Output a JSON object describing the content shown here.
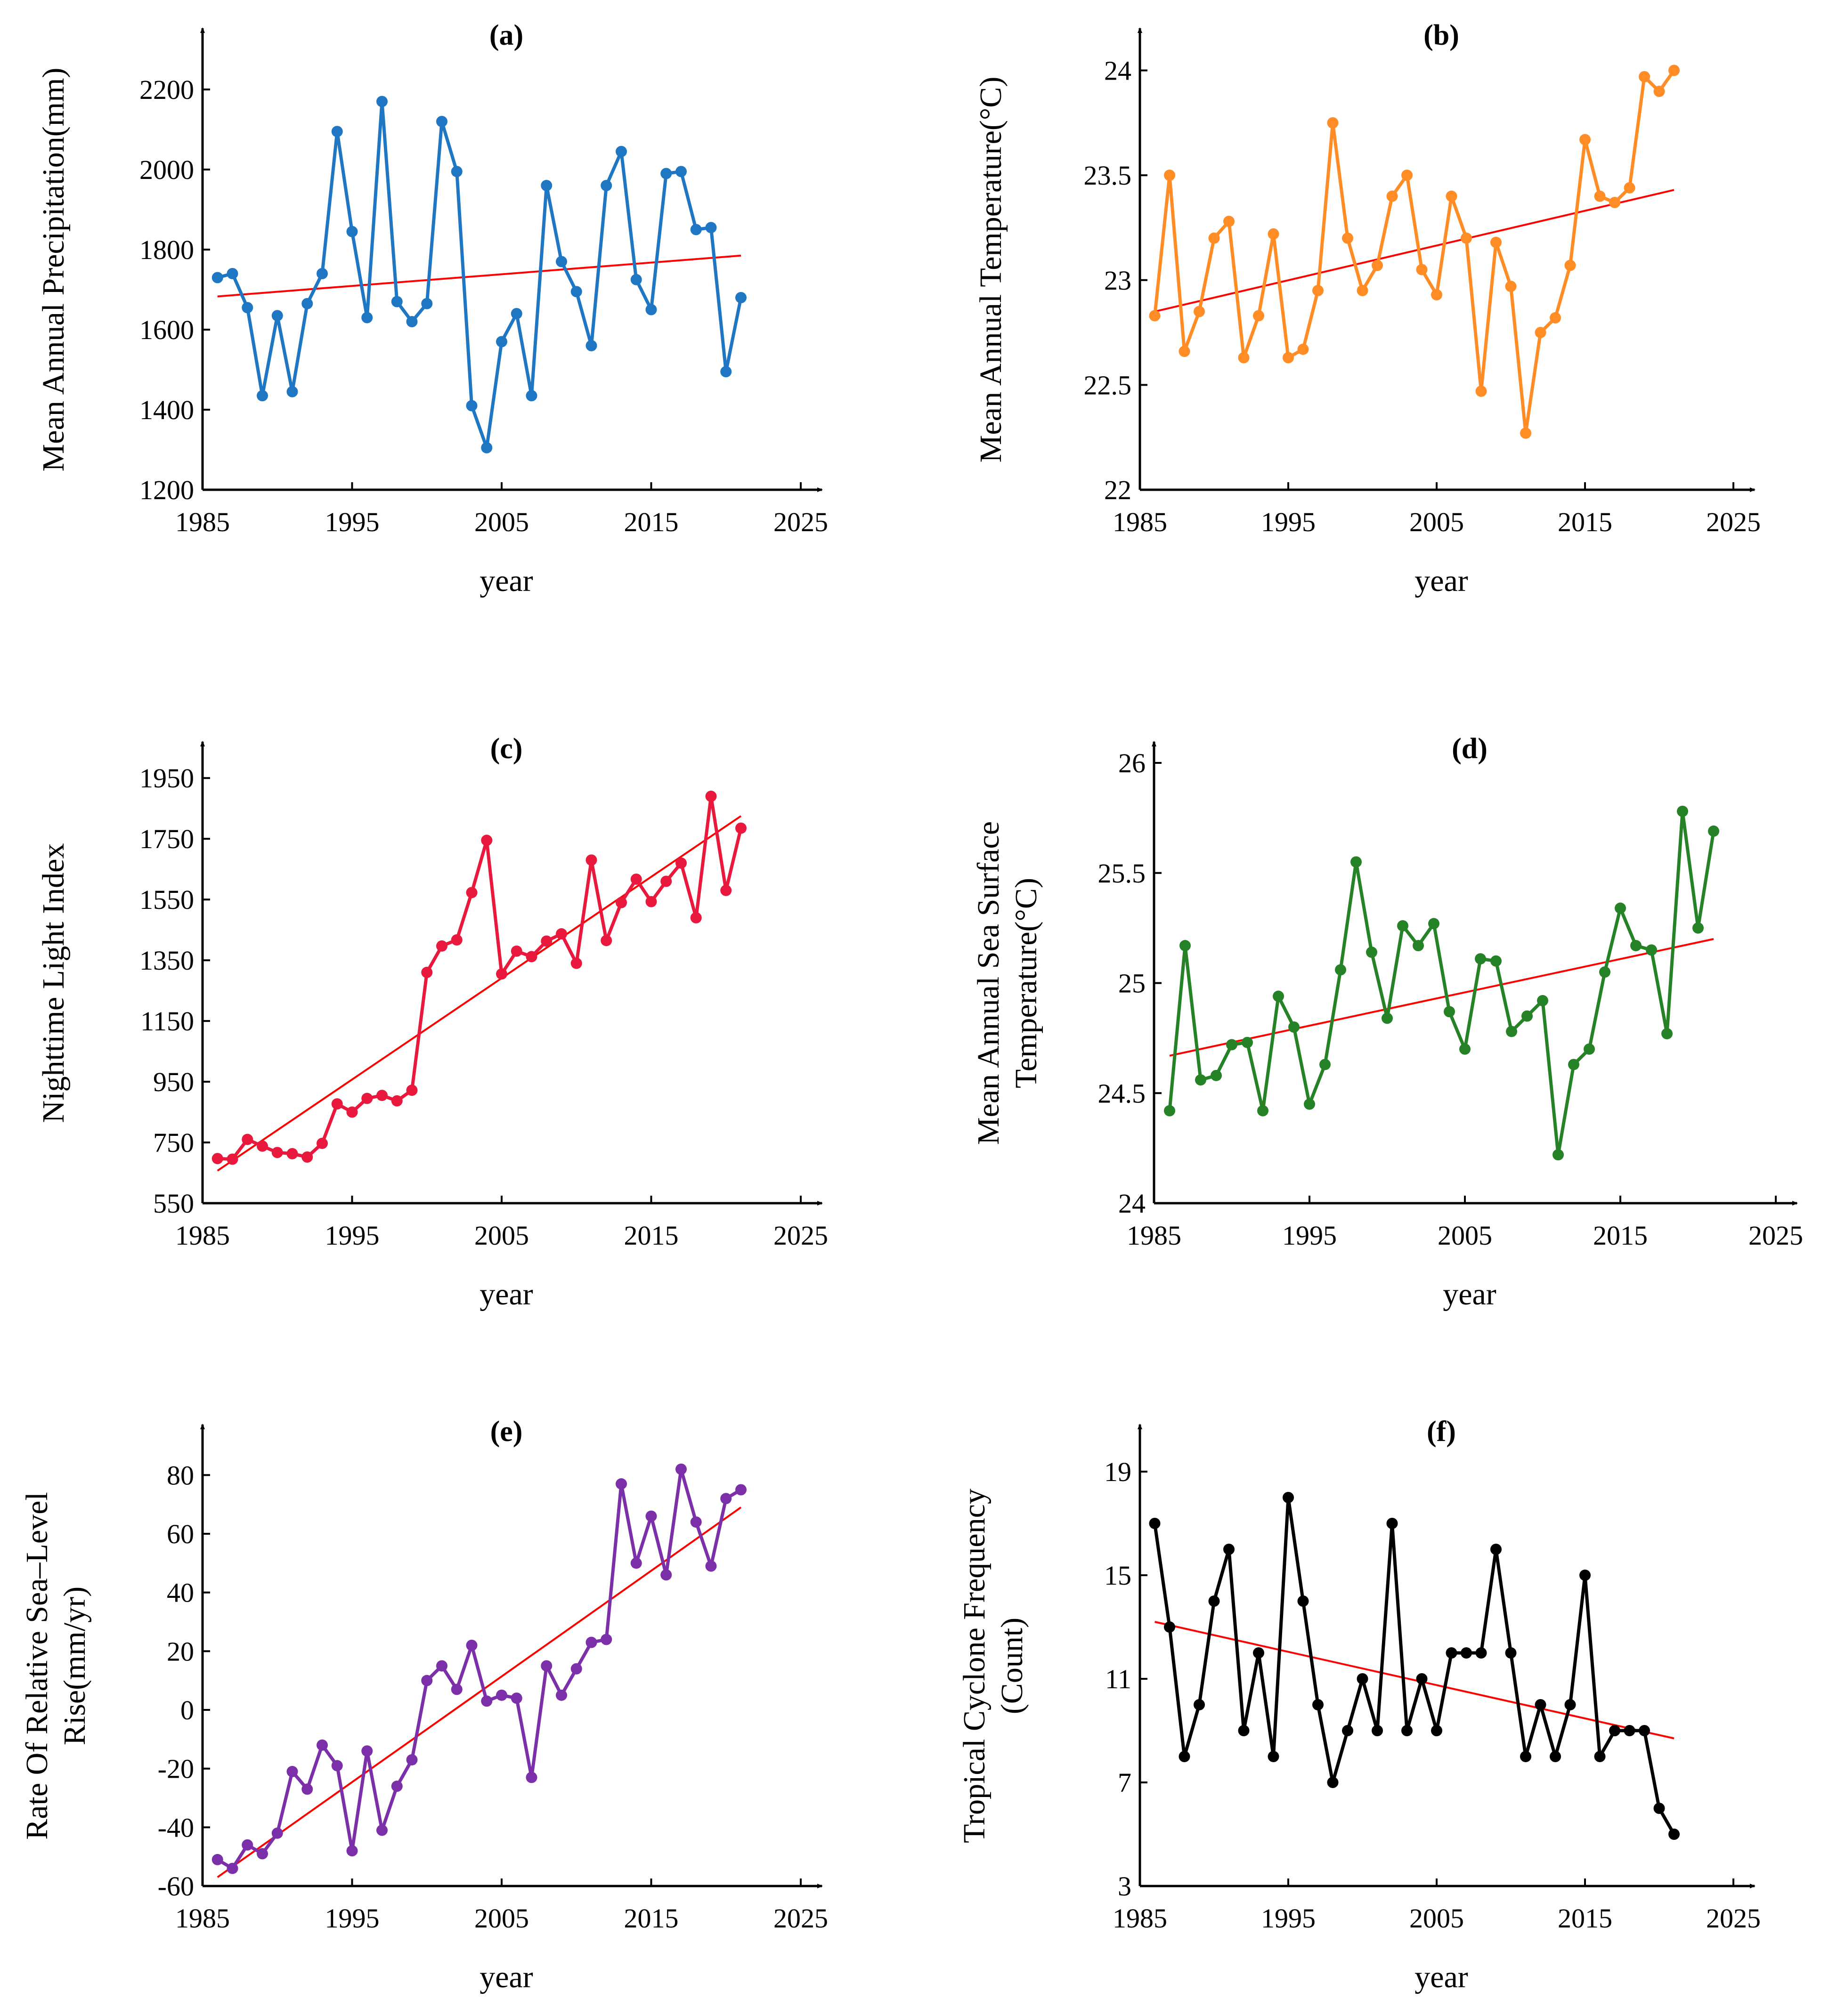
{
  "chart_data": [
    {
      "panel": "a",
      "type": "line",
      "title": "(a)",
      "title_letter": "a",
      "xlabel": "year",
      "ylabel": [
        "Mean Annual Precipitation(mm)"
      ],
      "xlim": [
        1985,
        2025
      ],
      "ylim": [
        1200,
        2300
      ],
      "xticks": [
        1985,
        1995,
        2005,
        2015,
        2025
      ],
      "yticks": [
        1200,
        1400,
        1600,
        1800,
        2000,
        2200
      ],
      "x": [
        1986,
        1987,
        1988,
        1989,
        1990,
        1991,
        1992,
        1993,
        1994,
        1995,
        1996,
        1997,
        1998,
        1999,
        2000,
        2001,
        2002,
        2003,
        2004,
        2005,
        2006,
        2007,
        2008,
        2009,
        2010,
        2011,
        2012,
        2013,
        2014,
        2015,
        2016,
        2017,
        2018,
        2019,
        2020,
        2021
      ],
      "values": [
        1730,
        1740,
        1655,
        1435,
        1635,
        1445,
        1665,
        1740,
        2095,
        1845,
        1630,
        2170,
        1670,
        1620,
        1665,
        2120,
        1995,
        1410,
        1305,
        1570,
        1640,
        1435,
        1960,
        1770,
        1695,
        1560,
        1960,
        2045,
        1725,
        1650,
        1990,
        1995,
        1850,
        1855,
        1495,
        1680
      ],
      "trend": {
        "x": [
          1986,
          2021
        ],
        "y": [
          1683,
          1785
        ]
      },
      "series_color": "#1f77c4",
      "trend_color": "#ff0000"
    },
    {
      "panel": "b",
      "type": "line",
      "title": "(b)",
      "title_letter": "b",
      "xlabel": "year",
      "ylabel": [
        "Mean Annual Temperature(°C)"
      ],
      "xlim": [
        1985,
        2025
      ],
      "ylim": [
        22,
        24.1
      ],
      "xticks": [
        1985,
        1995,
        2005,
        2015,
        2025
      ],
      "yticks": [
        22,
        22.5,
        23,
        23.5,
        24
      ],
      "x": [
        1986,
        1987,
        1988,
        1989,
        1990,
        1991,
        1992,
        1993,
        1994,
        1995,
        1996,
        1997,
        1998,
        1999,
        2000,
        2001,
        2002,
        2003,
        2004,
        2005,
        2006,
        2007,
        2008,
        2009,
        2010,
        2011,
        2012,
        2013,
        2014,
        2015,
        2016,
        2017,
        2018,
        2019,
        2020,
        2021
      ],
      "values": [
        22.83,
        23.5,
        22.66,
        22.85,
        23.2,
        23.28,
        22.63,
        22.83,
        23.22,
        22.63,
        22.67,
        22.95,
        23.75,
        23.2,
        22.95,
        23.07,
        23.4,
        23.5,
        23.05,
        22.93,
        23.4,
        23.2,
        22.47,
        23.18,
        22.97,
        22.27,
        22.75,
        22.82,
        23.07,
        23.67,
        23.4,
        23.37,
        23.44,
        23.97,
        23.9,
        24.0
      ],
      "trend": {
        "x": [
          1986,
          2021
        ],
        "y": [
          22.85,
          23.43
        ]
      },
      "series_color": "#ff8c24",
      "trend_color": "#ff0000"
    },
    {
      "panel": "c",
      "type": "line",
      "title": "(c)",
      "title_letter": "c",
      "xlabel": "year",
      "ylabel": [
        "Nighttime Light Index"
      ],
      "xlim": [
        1985,
        2025
      ],
      "ylim": [
        550,
        2000
      ],
      "xticks": [
        1985,
        1995,
        2005,
        2015,
        2025
      ],
      "yticks": [
        550,
        750,
        950,
        1150,
        1350,
        1550,
        1750,
        1950
      ],
      "x": [
        1986,
        1987,
        1988,
        1989,
        1990,
        1991,
        1992,
        1993,
        1994,
        1995,
        1996,
        1997,
        1998,
        1999,
        2000,
        2001,
        2002,
        2003,
        2004,
        2005,
        2006,
        2007,
        2008,
        2009,
        2010,
        2011,
        2012,
        2013,
        2014,
        2015,
        2016,
        2017,
        2018,
        2019,
        2020,
        2021
      ],
      "values": [
        697,
        695,
        760,
        738,
        717,
        713,
        702,
        747,
        877,
        850,
        895,
        905,
        887,
        922,
        1310,
        1397,
        1417,
        1573,
        1745,
        1305,
        1380,
        1362,
        1413,
        1437,
        1340,
        1680,
        1415,
        1540,
        1617,
        1543,
        1610,
        1670,
        1490,
        1890,
        1580,
        1785
      ],
      "trend": {
        "x": [
          1986,
          2021
        ],
        "y": [
          657,
          1825
        ]
      },
      "series_color": "#e8193c",
      "trend_color": "#ff0000"
    },
    {
      "panel": "d",
      "type": "line",
      "title": "(d)",
      "title_letter": "d",
      "xlabel": "year",
      "ylabel": [
        "Mean Annual Sea Surface",
        "Temperature(°C)"
      ],
      "xlim": [
        1985,
        2025
      ],
      "ylim": [
        24,
        26
      ],
      "xticks": [
        1985,
        1995,
        2005,
        2015,
        2025
      ],
      "yticks": [
        24,
        24.5,
        25,
        25.5,
        26
      ],
      "x": [
        1986,
        1987,
        1988,
        1989,
        1990,
        1991,
        1992,
        1993,
        1994,
        1995,
        1996,
        1997,
        1998,
        1999,
        2000,
        2001,
        2002,
        2003,
        2004,
        2005,
        2006,
        2007,
        2008,
        2009,
        2010,
        2011,
        2012,
        2013,
        2014,
        2015,
        2016,
        2017,
        2018,
        2019,
        2020,
        2021
      ],
      "values": [
        24.42,
        25.17,
        24.56,
        24.58,
        24.72,
        24.73,
        24.42,
        24.94,
        24.8,
        24.45,
        24.63,
        25.06,
        25.55,
        25.14,
        24.84,
        25.26,
        25.17,
        25.27,
        24.87,
        24.7,
        25.11,
        25.1,
        24.78,
        24.85,
        24.92,
        24.22,
        24.63,
        24.7,
        25.05,
        25.34,
        25.17,
        25.15,
        24.77,
        25.78,
        25.25,
        25.69
      ],
      "trend": {
        "x": [
          1986,
          2021
        ],
        "y": [
          24.67,
          25.2
        ]
      },
      "series_color": "#268226",
      "trend_color": "#ff0000"
    },
    {
      "panel": "e",
      "type": "line",
      "title": "(e)",
      "title_letter": "e",
      "xlabel": "year",
      "ylabel": [
        "Rate Of Relative Sea–Level",
        "Rise(mm/yr)"
      ],
      "xlim": [
        1985,
        2025
      ],
      "ylim": [
        -60,
        90
      ],
      "xticks": [
        1985,
        1995,
        2005,
        2015,
        2025
      ],
      "yticks": [
        -60,
        -40,
        -20,
        0,
        20,
        40,
        60,
        80
      ],
      "x": [
        1986,
        1987,
        1988,
        1989,
        1990,
        1991,
        1992,
        1993,
        1994,
        1995,
        1996,
        1997,
        1998,
        1999,
        2000,
        2001,
        2002,
        2003,
        2004,
        2005,
        2006,
        2007,
        2008,
        2009,
        2010,
        2011,
        2012,
        2013,
        2014,
        2015,
        2016,
        2017,
        2018,
        2019,
        2020,
        2021
      ],
      "values": [
        -51,
        -54,
        -46,
        -49,
        -42,
        -21,
        -27,
        -12,
        -19,
        -48,
        -14,
        -41,
        -26,
        -17,
        10,
        15,
        7,
        22,
        3,
        5,
        4,
        -23,
        15,
        5,
        14,
        23,
        24,
        77,
        50,
        66,
        46,
        82,
        64,
        49,
        72,
        75
      ],
      "trend": {
        "x": [
          1986,
          2021
        ],
        "y": [
          -57,
          69
        ]
      },
      "series_color": "#7b2fa8",
      "trend_color": "#ff0000"
    },
    {
      "panel": "f",
      "type": "line",
      "title": "(f)",
      "title_letter": "f",
      "xlabel": "year",
      "ylabel": [
        "Tropical Cyclone Frequency",
        "(Count)"
      ],
      "xlim": [
        1985,
        2025
      ],
      "ylim": [
        3,
        20
      ],
      "xticks": [
        1985,
        1995,
        2005,
        2015,
        2025
      ],
      "yticks": [
        3,
        7,
        11,
        15,
        19
      ],
      "x": [
        1986,
        1987,
        1988,
        1989,
        1990,
        1991,
        1992,
        1993,
        1994,
        1995,
        1996,
        1997,
        1998,
        1999,
        2000,
        2001,
        2002,
        2003,
        2004,
        2005,
        2006,
        2007,
        2008,
        2009,
        2010,
        2011,
        2012,
        2013,
        2014,
        2015,
        2016,
        2017,
        2018,
        2019,
        2020,
        2021
      ],
      "values": [
        17,
        13,
        8,
        10,
        14,
        16,
        9,
        12,
        8,
        18,
        14,
        10,
        7,
        9,
        11,
        9,
        17,
        9,
        11,
        9,
        12,
        12,
        12,
        16,
        12,
        8,
        10,
        8,
        10,
        15,
        8,
        9,
        9,
        9,
        6,
        5
      ],
      "trend": {
        "x": [
          1986,
          2021
        ],
        "y": [
          13.2,
          8.7
        ]
      },
      "series_color": "#000000",
      "trend_color": "#ff0000"
    }
  ]
}
